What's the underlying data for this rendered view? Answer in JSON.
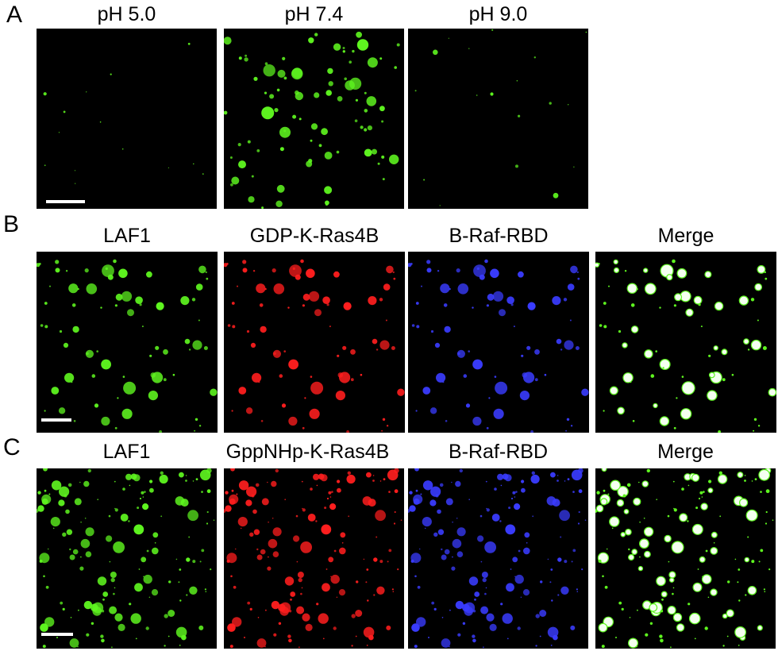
{
  "panels": [
    {
      "letter": "A",
      "images": [
        {
          "label": "pH 5.0"
        },
        {
          "label": "pH 7.4"
        },
        {
          "label": "pH 9.0"
        }
      ]
    },
    {
      "letter": "B",
      "images": [
        {
          "label": "LAF1"
        },
        {
          "label": "GDP-K-Ras4B"
        },
        {
          "label": "B-Raf-RBD"
        },
        {
          "label": "Merge"
        }
      ]
    },
    {
      "letter": "C",
      "images": [
        {
          "label": "LAF1"
        },
        {
          "label": "GppNHp-K-Ras4B"
        },
        {
          "label": "B-Raf-RBD"
        },
        {
          "label": "Merge"
        }
      ]
    }
  ]
}
